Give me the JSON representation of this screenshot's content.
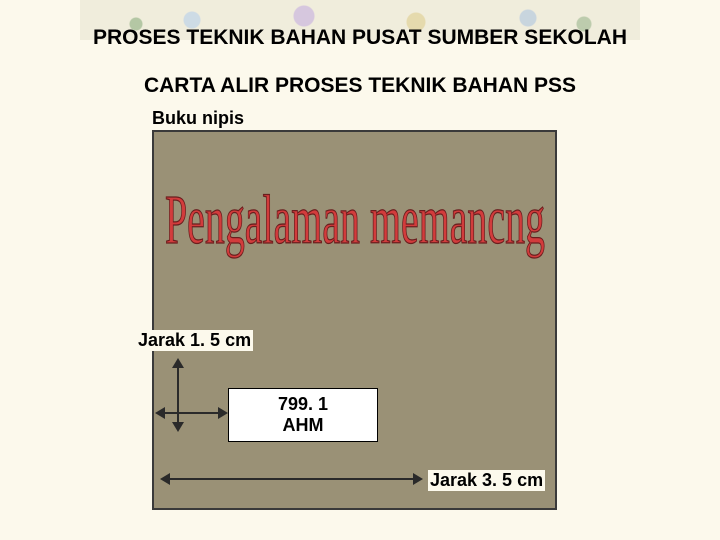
{
  "slide": {
    "background_color": "#fcf9ec",
    "title_line1": "PROSES TEKNIK BAHAN PUSAT SUMBER SEKOLAH",
    "title_line2": "CARTA ALIR PROSES TEKNIK BAHAN PSS",
    "title_fontsize": 21,
    "title_weight": "bold",
    "title_color": "#000000"
  },
  "book": {
    "label": "Buku nipis",
    "label_fontsize": 18,
    "cover_color": "#9a9176",
    "cover_border_color": "#3a3a3a",
    "wordart_text": "Pengalaman memancng",
    "wordart_fill": "#d23c3c",
    "wordart_stroke": "#6a1e1e",
    "wordart_fontsize": 56
  },
  "code_box": {
    "line1": "799. 1",
    "line2": "AHM",
    "background": "#ffffff",
    "border_color": "#000000",
    "fontsize": 18
  },
  "measurements": {
    "jarak1_label": "Jarak 1. 5 cm",
    "jarak2_label": "Jarak 3. 5 cm",
    "arrow_color": "#2a2a2a"
  },
  "decor": {
    "floral_colors": [
      "#a8c4e0",
      "#b89fd4",
      "#d4c27a",
      "#9fb8d4",
      "#7a9f6a",
      "#8aa87a"
    ]
  }
}
